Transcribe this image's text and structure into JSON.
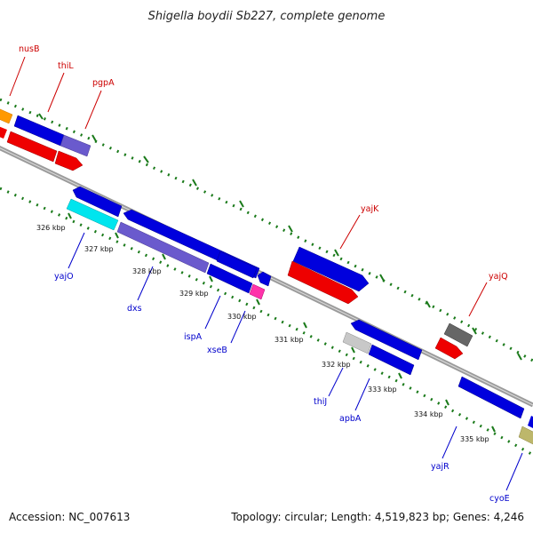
{
  "title": "Shigella boydii Sb227, complete genome",
  "accession_text": "Accession: NC_007613",
  "summary_text": "Topology: circular; Length: 4,519,823 bp; Genes: 4,246",
  "colors": {
    "forward_label": "#cc0000",
    "reverse_label": "#0000cc",
    "backbone": "#8a8a8a",
    "tick": "#1a7a1a",
    "cds_blue": "#0000dd",
    "cds_red": "#ee0000",
    "cds_light_blue": "#6a5acd",
    "cds_cyan": "#00e5ee",
    "cds_orange": "#ff9900",
    "cds_pink": "#ff33aa",
    "cds_gray": "#666666",
    "cds_silver": "#c8c8c8",
    "cds_khaki": "#bdb76b"
  },
  "position_labels": [
    "326 kbp",
    "327 kbp",
    "328 kbp",
    "329 kbp",
    "330 kbp",
    "331 kbp",
    "332 kbp",
    "333 kbp",
    "334 kbp",
    "335 kbp"
  ],
  "forward_genes": [
    "nusB",
    "thiL",
    "pgpA",
    "yajK",
    "yajQ"
  ],
  "reverse_genes": [
    "yajO",
    "dxs",
    "ispA",
    "xseB",
    "thiJ",
    "apbA",
    "yajR",
    "cyoE"
  ]
}
